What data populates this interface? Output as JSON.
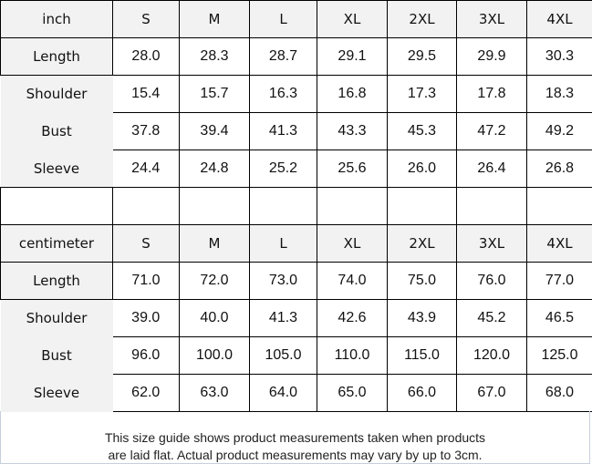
{
  "sizes": [
    "S",
    "M",
    "L",
    "XL",
    "2XL",
    "3XL",
    "4XL"
  ],
  "inch": {
    "unit_label": "inch",
    "rows": [
      {
        "label": "Length",
        "values": [
          "28.0",
          "28.3",
          "28.7",
          "29.1",
          "29.5",
          "29.9",
          "30.3"
        ]
      },
      {
        "label": "Shoulder",
        "values": [
          "15.4",
          "15.7",
          "16.3",
          "16.8",
          "17.3",
          "17.8",
          "18.3"
        ]
      },
      {
        "label": "Bust",
        "values": [
          "37.8",
          "39.4",
          "41.3",
          "43.3",
          "45.3",
          "47.2",
          "49.2"
        ]
      },
      {
        "label": "Sleeve",
        "values": [
          "24.4",
          "24.8",
          "25.2",
          "25.6",
          "26.0",
          "26.4",
          "26.8"
        ]
      }
    ]
  },
  "centimeter": {
    "unit_label": "centimeter",
    "rows": [
      {
        "label": "Length",
        "values": [
          "71.0",
          "72.0",
          "73.0",
          "74.0",
          "75.0",
          "76.0",
          "77.0"
        ]
      },
      {
        "label": "Shoulder",
        "values": [
          "39.0",
          "40.0",
          "41.3",
          "42.6",
          "43.9",
          "45.2",
          "46.5"
        ]
      },
      {
        "label": "Bust",
        "values": [
          "96.0",
          "100.0",
          "105.0",
          "110.0",
          "115.0",
          "120.0",
          "125.0"
        ]
      },
      {
        "label": "Sleeve",
        "values": [
          "62.0",
          "63.0",
          "64.0",
          "65.0",
          "66.0",
          "67.0",
          "68.0"
        ]
      }
    ]
  },
  "note": {
    "line1": "This size guide shows product measurements taken when products",
    "line2": "are laid flat. Actual product measurements may vary by up to 3cm."
  },
  "colors": {
    "label_bg": "#f2f2f2",
    "border": "#000000"
  }
}
